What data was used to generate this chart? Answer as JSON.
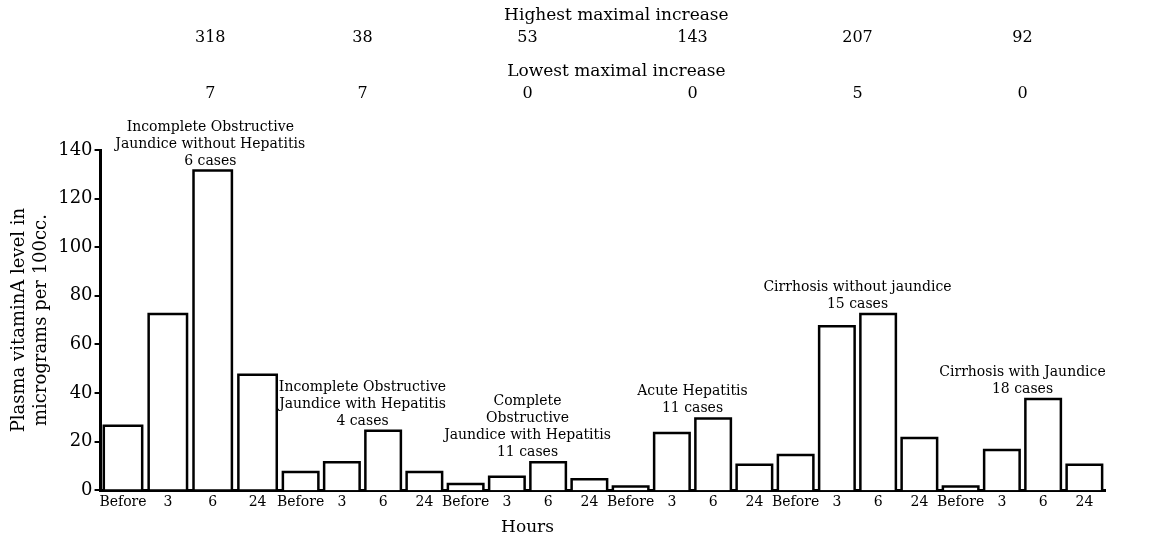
{
  "chart_data": [
    {
      "type": "bar",
      "title": "Incomplete Obstructive\nJaundice without Hepatitis\n6 cases",
      "categories": [
        "Before",
        "3",
        "6",
        "24"
      ],
      "series": [
        {
          "color": "#ffffff",
          "values": [
            26,
            72,
            131,
            47
          ]
        }
      ],
      "ylabel": "Plasma vitaminA level in\nmicrograms per 100cc.",
      "ylim": [
        0,
        140
      ],
      "yticks": [
        0,
        20,
        40,
        60,
        80,
        100,
        120,
        140
      ],
      "grid": false,
      "legend": false,
      "annotations": [
        "318",
        "7"
      ]
    },
    {
      "type": "bar",
      "title": "Incomplete Obstructive\nJaundice with Hepatitis\n4 cases",
      "categories": [
        "Before",
        "3",
        "6",
        "24"
      ],
      "series": [
        {
          "color": "#ffffff",
          "values": [
            7,
            11,
            24,
            7
          ]
        }
      ],
      "ylim": [
        0,
        140
      ],
      "tick_labels": "x",
      "grid": false,
      "legend": false,
      "annotations": [
        "38",
        "7"
      ]
    },
    {
      "type": "bar",
      "title": "Complete\nObstructive\nJaundice with Hepatitis\n11 cases",
      "categories": [
        "Before",
        "3",
        "6",
        "24"
      ],
      "series": [
        {
          "color": "#ffffff",
          "values": [
            2,
            5,
            11,
            4
          ]
        }
      ],
      "xlabel": "Hours",
      "ylim": [
        0,
        140
      ],
      "tick_labels": "x",
      "grid": false,
      "legend": false,
      "annotations": [
        "53",
        "0"
      ]
    },
    {
      "type": "bar",
      "title": "Acute Hepatitis\n11 cases",
      "categories": [
        "Before",
        "3",
        "6",
        "24"
      ],
      "series": [
        {
          "color": "#ffffff",
          "values": [
            1,
            23,
            29,
            10
          ]
        }
      ],
      "ylim": [
        0,
        140
      ],
      "tick_labels": "x",
      "grid": false,
      "legend": false,
      "annotations": [
        "143",
        "0"
      ]
    },
    {
      "type": "bar",
      "title": "Cirrhosis without jaundice\n15 cases",
      "categories": [
        "Before",
        "3",
        "6",
        "24"
      ],
      "series": [
        {
          "color": "#ffffff",
          "values": [
            14,
            67,
            72,
            21
          ]
        }
      ],
      "ylim": [
        0,
        140
      ],
      "tick_labels": "x",
      "grid": false,
      "legend": false,
      "annotations": [
        "207",
        "5"
      ]
    },
    {
      "type": "bar",
      "title": "Cirrhosis with Jaundice\n18 cases",
      "categories": [
        "Before",
        "3",
        "6",
        "24"
      ],
      "series": [
        {
          "color": "#ffffff",
          "values": [
            1,
            16,
            37,
            10
          ]
        }
      ],
      "ylim": [
        0,
        140
      ],
      "tick_labels": "x",
      "grid": false,
      "legend": false,
      "annotations": [
        "92",
        "0"
      ]
    },
    {
      "type": "other",
      "annotations": [
        "Highest maximal increase",
        "Lowest maximal increase"
      ]
    }
  ]
}
